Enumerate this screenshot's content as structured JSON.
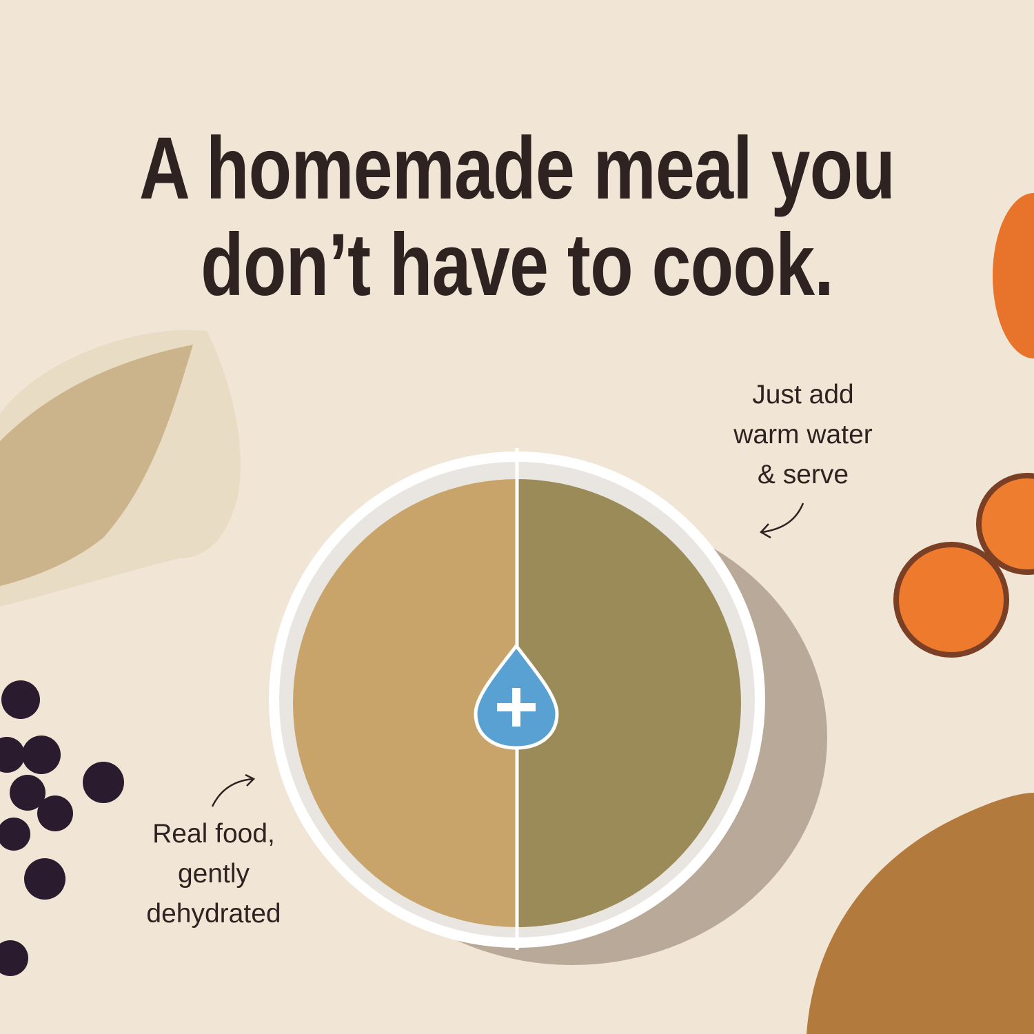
{
  "headline": {
    "line1": "A homemade meal you",
    "line2": "don’t have to cook."
  },
  "annotations": {
    "right": {
      "line1": "Just add",
      "line2": "warm water",
      "line3": "& serve"
    },
    "left": {
      "line1": "Real food,",
      "line2": "gently",
      "line3": "dehydrated"
    }
  },
  "colors": {
    "background": "#f1e6d6",
    "text": "#2e2321",
    "drop": "#5aa1d3",
    "dry_food": "#c9a46a",
    "wet_food": "#9b8b58"
  },
  "icons": {
    "center": "water-drop-plus-icon"
  }
}
